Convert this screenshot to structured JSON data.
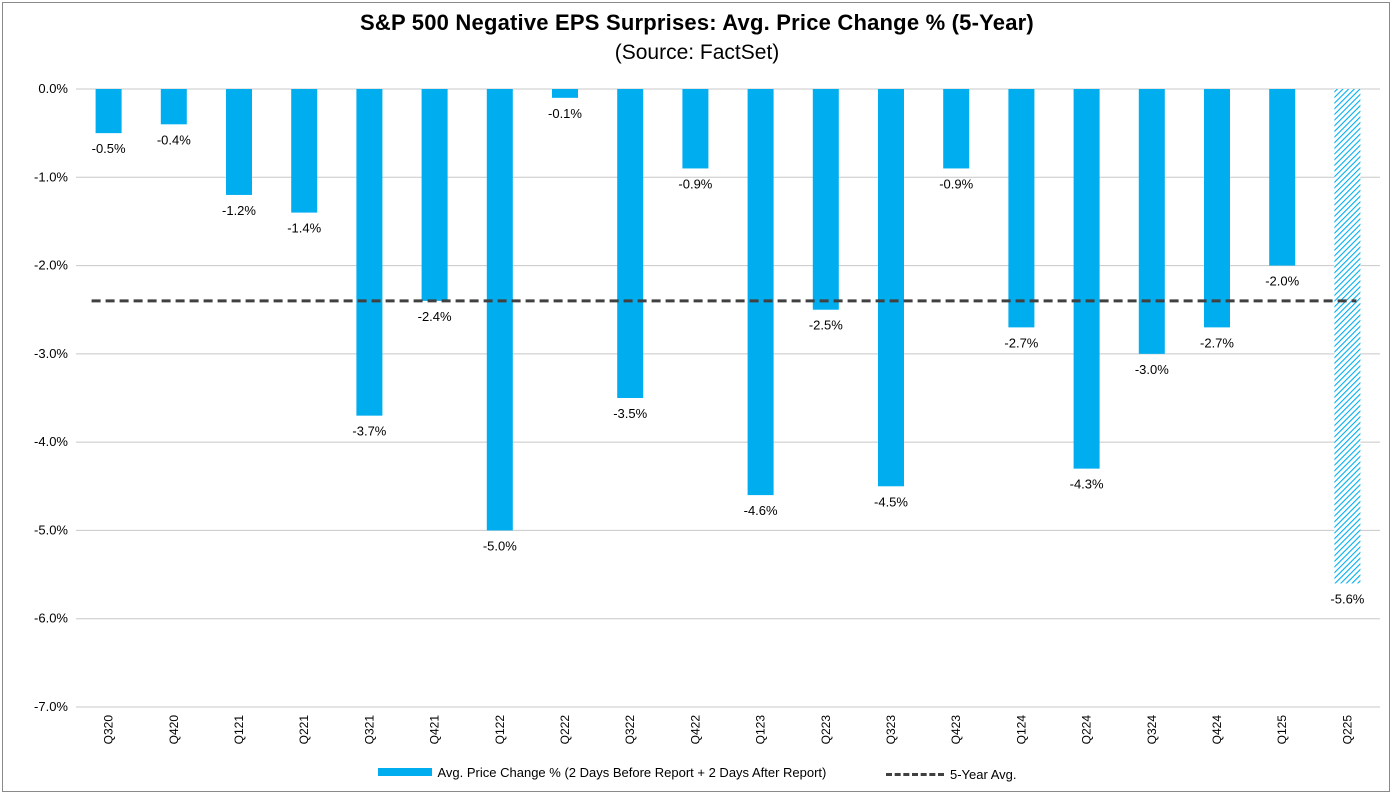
{
  "chart_data": {
    "type": "bar",
    "title": "S&P 500 Negative EPS Surprises: Avg. Price Change % (5-Year)",
    "subtitle": "(Source: FactSet)",
    "categories": [
      "Q320",
      "Q420",
      "Q121",
      "Q221",
      "Q321",
      "Q421",
      "Q122",
      "Q222",
      "Q322",
      "Q422",
      "Q123",
      "Q223",
      "Q323",
      "Q423",
      "Q124",
      "Q224",
      "Q324",
      "Q424",
      "Q125",
      "Q225"
    ],
    "series": [
      {
        "name": "Avg. Price Change % (2 Days Before Report + 2 Days After Report)",
        "values": [
          -0.5,
          -0.4,
          -1.2,
          -1.4,
          -3.7,
          -2.4,
          -5.0,
          -0.1,
          -3.5,
          -0.9,
          -4.6,
          -2.5,
          -4.5,
          -0.9,
          -2.7,
          -4.3,
          -3.0,
          -2.7,
          -2.0,
          -5.6
        ],
        "labels": [
          "-0.5%",
          "-0.4%",
          "-1.2%",
          "-1.4%",
          "-3.7%",
          "-2.4%",
          "-5.0%",
          "-0.1%",
          "-3.5%",
          "-0.9%",
          "-4.6%",
          "-2.5%",
          "-4.5%",
          "-0.9%",
          "-2.7%",
          "-4.3%",
          "-3.0%",
          "-2.7%",
          "-2.0%",
          "-5.6%"
        ],
        "highlight_last": true,
        "color": "#00aeef"
      },
      {
        "name": "5-Year Avg.",
        "type": "line",
        "value": -2.4,
        "color": "#404040"
      }
    ],
    "ylim": [
      -7.0,
      0.0
    ],
    "yticks": [
      0,
      -1,
      -2,
      -3,
      -4,
      -5,
      -6,
      -7
    ],
    "ytick_labels": [
      "0.0%",
      "-1.0%",
      "-2.0%",
      "-3.0%",
      "-4.0%",
      "-5.0%",
      "-6.0%",
      "-7.0%"
    ],
    "grid": true,
    "legend": "bottom",
    "xlabel": "",
    "ylabel": ""
  },
  "colors": {
    "bar": "#00aeef",
    "average_line": "#404040",
    "grid": "#c8c8c8"
  }
}
